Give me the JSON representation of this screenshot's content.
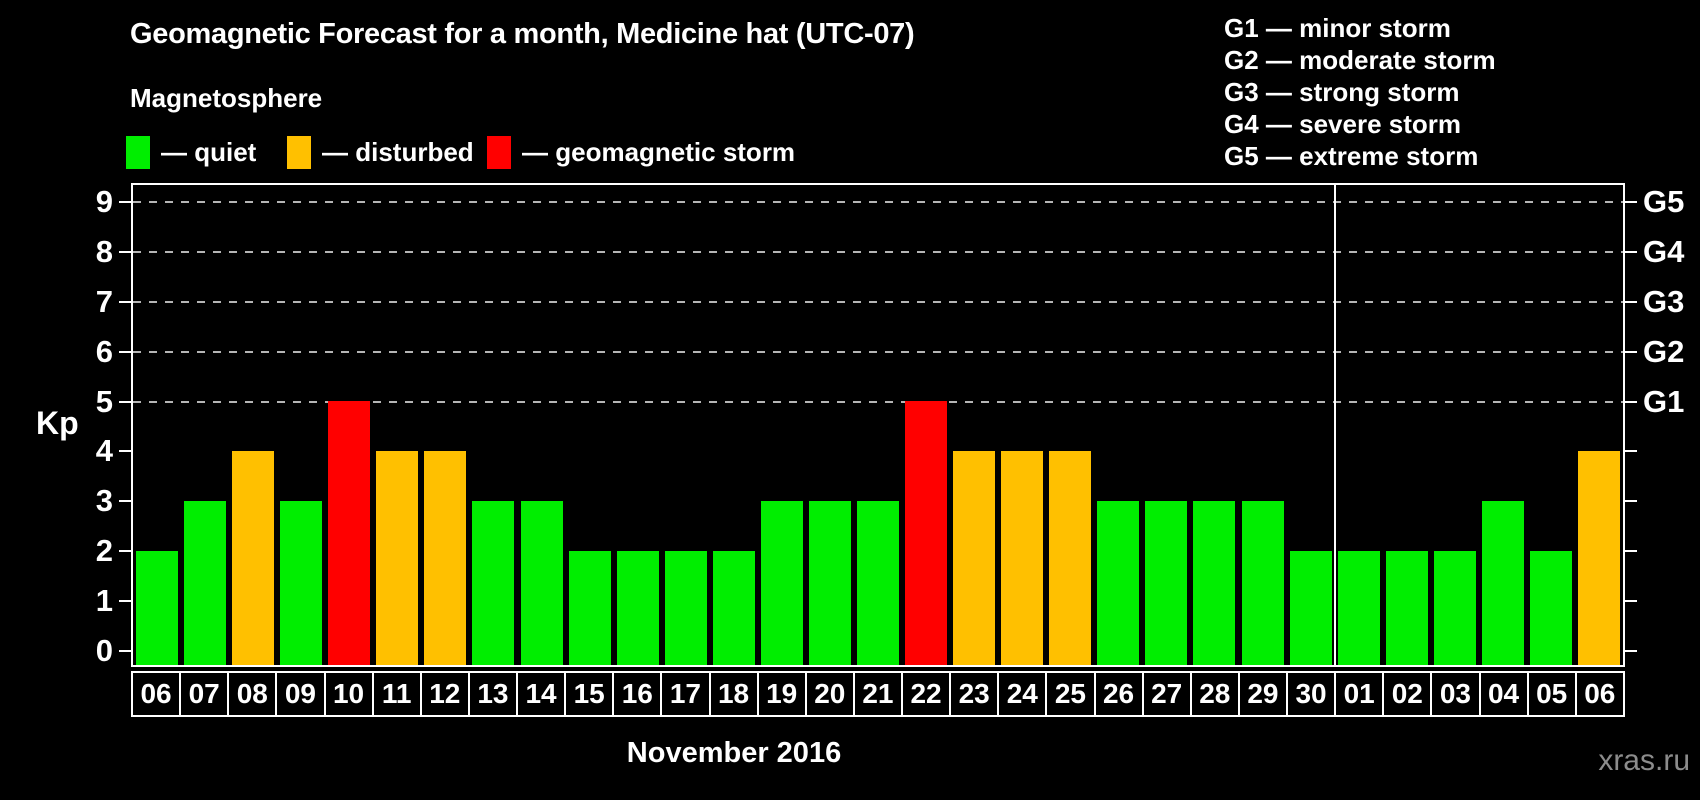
{
  "watermark": "xras.ru",
  "colors": {
    "quiet": "#00ee00",
    "disturbed": "#ffc000",
    "storm": "#ff0000",
    "background": "#000000",
    "axis": "#ffffff",
    "gridline": "#b5b5b5"
  },
  "legend": {
    "items": [
      {
        "key": "quiet",
        "label": "— quiet",
        "color": "#00ee00"
      },
      {
        "key": "disturbed",
        "label": "— disturbed",
        "color": "#ffc000"
      },
      {
        "key": "storm",
        "label": "— geomagnetic storm",
        "color": "#ff0000"
      }
    ]
  },
  "g_legend": [
    "G1 — minor storm",
    "G2 — moderate storm",
    "G3 — strong storm",
    "G4 — severe storm",
    "G5 — extreme storm"
  ],
  "chart_data": {
    "type": "bar",
    "title": "Geomagnetic Forecast for a month, Medicine hat (UTC-07)",
    "subtitle": "Magnetosphere",
    "ylabel": "Kp",
    "xlabel": "",
    "month_label": "November 2016",
    "ylim": [
      0,
      9.5
    ],
    "y_ticks": [
      0,
      1,
      2,
      3,
      4,
      5,
      6,
      7,
      8,
      9
    ],
    "grid_levels": [
      5,
      6,
      7,
      8,
      9
    ],
    "right_axis_labels": [
      {
        "kp": 5,
        "label": "G1"
      },
      {
        "kp": 6,
        "label": "G2"
      },
      {
        "kp": 7,
        "label": "G3"
      },
      {
        "kp": 8,
        "label": "G4"
      },
      {
        "kp": 9,
        "label": "G5"
      }
    ],
    "december_start_index": 25,
    "categories": [
      "06",
      "07",
      "08",
      "09",
      "10",
      "11",
      "12",
      "13",
      "14",
      "15",
      "16",
      "17",
      "18",
      "19",
      "20",
      "21",
      "22",
      "23",
      "24",
      "25",
      "26",
      "27",
      "28",
      "29",
      "30",
      "01",
      "02",
      "03",
      "04",
      "05",
      "06"
    ],
    "values": [
      2,
      3,
      4,
      3,
      5,
      4,
      4,
      3,
      3,
      2,
      2,
      2,
      2,
      3,
      3,
      3,
      5,
      4,
      4,
      4,
      3,
      3,
      3,
      3,
      2,
      2,
      2,
      2,
      3,
      2,
      4
    ],
    "statuses": [
      "quiet",
      "quiet",
      "disturbed",
      "quiet",
      "storm",
      "disturbed",
      "disturbed",
      "quiet",
      "quiet",
      "quiet",
      "quiet",
      "quiet",
      "quiet",
      "quiet",
      "quiet",
      "quiet",
      "storm",
      "disturbed",
      "disturbed",
      "disturbed",
      "quiet",
      "quiet",
      "quiet",
      "quiet",
      "quiet",
      "quiet",
      "quiet",
      "quiet",
      "quiet",
      "quiet",
      "disturbed"
    ]
  }
}
